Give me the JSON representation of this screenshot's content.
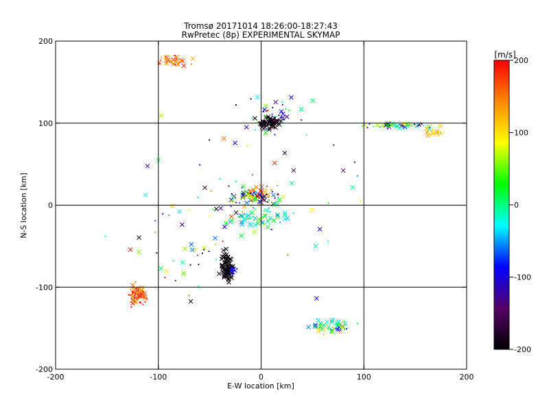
{
  "chart_data": {
    "type": "scatter",
    "title": "Tromsø 20171014 18:26:00-18:27:43",
    "subtitle": "RwPretec (8p) EXPERIMENTAL SKYMAP",
    "xlabel": "E-W location [km]",
    "ylabel": "N-S location [km]",
    "xlim": [
      -200,
      200
    ],
    "ylim": [
      -200,
      200
    ],
    "xticks": [
      "-200",
      "-100",
      "0",
      "100",
      "200"
    ],
    "yticks": [
      "-200",
      "-100",
      "0",
      "100",
      "200"
    ],
    "grid_lines": [
      -100,
      0,
      100
    ],
    "colorbar": {
      "unit_label": "[m/s]",
      "range": [
        -200,
        200
      ],
      "ticks": [
        "200",
        "100",
        "0",
        "-100",
        "-200"
      ],
      "colors": [
        "#000000",
        "#550066",
        "#0000ff",
        "#00ffff",
        "#00ff00",
        "#ffff00",
        "#ff8800",
        "#ff0000"
      ]
    },
    "clusters": [
      {
        "name": "north-center",
        "marker": "mixed",
        "center": [
          8,
          101
        ],
        "spread": [
          10,
          7
        ],
        "count": 95,
        "velocity": [
          -200,
          -180
        ]
      },
      {
        "name": "north-center-sparse",
        "marker": "mixed",
        "center": [
          15,
          110
        ],
        "spread": [
          30,
          20
        ],
        "count": 40,
        "velocity": [
          -200,
          60
        ]
      },
      {
        "name": "northwest-group",
        "marker": "mixed",
        "center": [
          -85,
          175
        ],
        "spread": [
          14,
          6
        ],
        "count": 38,
        "velocity": [
          120,
          200
        ]
      },
      {
        "name": "northeast-band",
        "marker": "mixed",
        "center": [
          135,
          97
        ],
        "spread": [
          30,
          3
        ],
        "count": 55,
        "velocity": [
          -200,
          120
        ]
      },
      {
        "name": "northeast-yellow",
        "marker": "mixed",
        "center": [
          170,
          88
        ],
        "spread": [
          8,
          7
        ],
        "count": 18,
        "velocity": [
          90,
          140
        ]
      },
      {
        "name": "center",
        "marker": "mixed",
        "center": [
          -2,
          10
        ],
        "spread": [
          22,
          10
        ],
        "count": 110,
        "velocity": [
          -200,
          200
        ]
      },
      {
        "name": "center-south",
        "marker": "mixed",
        "center": [
          0,
          -15
        ],
        "spread": [
          25,
          10
        ],
        "count": 60,
        "velocity": [
          -60,
          60
        ]
      },
      {
        "name": "south-center-black",
        "marker": "x",
        "center": [
          -33,
          -75
        ],
        "spread": [
          6,
          18
        ],
        "count": 70,
        "velocity": [
          -200,
          -190
        ]
      },
      {
        "name": "south-center-blue",
        "marker": "mixed",
        "center": [
          -28,
          -80
        ],
        "spread": [
          3,
          6
        ],
        "count": 15,
        "velocity": [
          -120,
          -80
        ]
      },
      {
        "name": "southwest-red",
        "marker": "mixed",
        "center": [
          -120,
          -110
        ],
        "spread": [
          8,
          12
        ],
        "count": 75,
        "velocity": [
          130,
          200
        ]
      },
      {
        "name": "southwest-sparse",
        "marker": "mixed",
        "center": [
          -85,
          -60
        ],
        "spread": [
          40,
          40
        ],
        "count": 30,
        "velocity": [
          -200,
          200
        ]
      },
      {
        "name": "southeast-group",
        "marker": "mixed",
        "center": [
          70,
          -148
        ],
        "spread": [
          18,
          8
        ],
        "count": 55,
        "velocity": [
          -100,
          130
        ]
      },
      {
        "name": "scattered",
        "marker": "mixed",
        "center": [
          0,
          0
        ],
        "spread": [
          110,
          90
        ],
        "count": 60,
        "velocity": [
          -200,
          200
        ]
      }
    ]
  }
}
